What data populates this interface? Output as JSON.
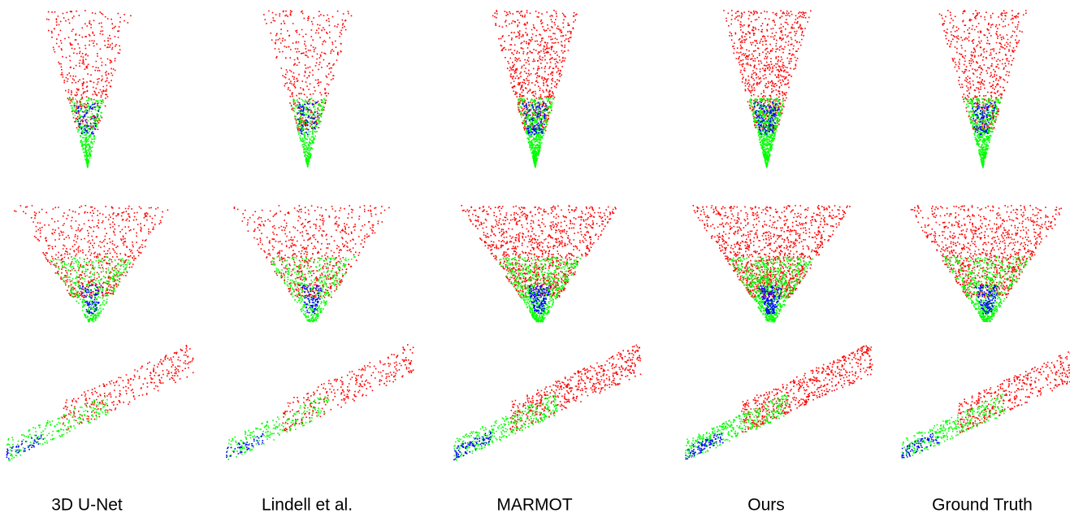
{
  "columns": [
    "3D U-Net",
    "Lindell et al.",
    "MARMOT",
    "Ours",
    "Ground Truth"
  ]
}
